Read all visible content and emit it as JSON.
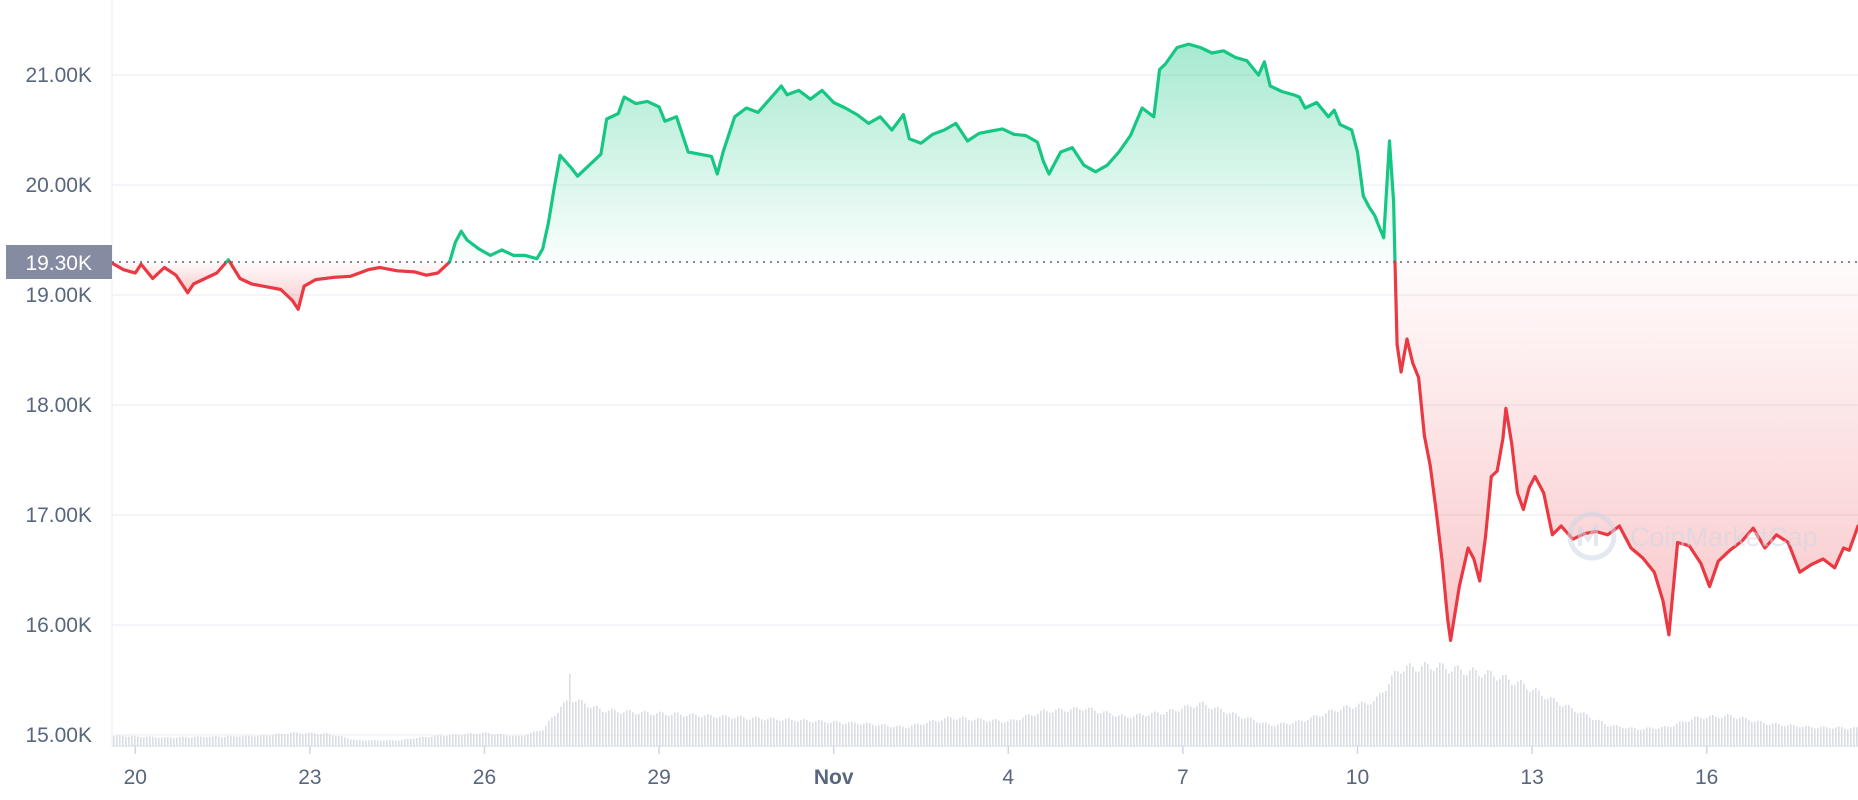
{
  "chart_data": {
    "type": "area",
    "title": "",
    "xlabel": "",
    "ylabel": "",
    "watermark": "CoinMarketCap",
    "reference": {
      "value": 19300,
      "label": "19.30K"
    },
    "ylim": [
      14900,
      21500
    ],
    "xlim": [
      19.6,
      49.6
    ],
    "y_ticks": [
      {
        "value": 21000,
        "label": "21.00K"
      },
      {
        "value": 20000,
        "label": "20.00K"
      },
      {
        "value": 19000,
        "label": "19.00K"
      },
      {
        "value": 18000,
        "label": "18.00K"
      },
      {
        "value": 17000,
        "label": "17.00K"
      },
      {
        "value": 16000,
        "label": "16.00K"
      },
      {
        "value": 15000,
        "label": "15.00K"
      }
    ],
    "x_ticks": [
      {
        "value": 20,
        "label": "20"
      },
      {
        "value": 23,
        "label": "23"
      },
      {
        "value": 26,
        "label": "26"
      },
      {
        "value": 29,
        "label": "29"
      },
      {
        "value": 32,
        "label": "Nov",
        "bold": true
      },
      {
        "value": 35,
        "label": "4"
      },
      {
        "value": 38,
        "label": "7"
      },
      {
        "value": 41,
        "label": "10"
      },
      {
        "value": 44,
        "label": "13"
      },
      {
        "value": 47,
        "label": "16"
      }
    ],
    "x_unit": "day (Oct 20 = 20, Nov 1 = 32)",
    "colors": {
      "up": "#16c784",
      "down": "#ea3943",
      "volume": "#d9dde4",
      "grid": "#eff2f5",
      "ref_box": "#858ca2",
      "axis_text": "#58667e"
    },
    "price": [
      [
        19.6,
        19290
      ],
      [
        19.8,
        19230
      ],
      [
        20.0,
        19200
      ],
      [
        20.1,
        19280
      ],
      [
        20.3,
        19150
      ],
      [
        20.5,
        19250
      ],
      [
        20.7,
        19180
      ],
      [
        20.9,
        19020
      ],
      [
        21.0,
        19100
      ],
      [
        21.2,
        19150
      ],
      [
        21.4,
        19200
      ],
      [
        21.6,
        19320
      ],
      [
        21.8,
        19150
      ],
      [
        22.0,
        19100
      ],
      [
        22.2,
        19080
      ],
      [
        22.5,
        19050
      ],
      [
        22.7,
        18950
      ],
      [
        22.8,
        18870
      ],
      [
        22.9,
        19080
      ],
      [
        23.1,
        19140
      ],
      [
        23.4,
        19160
      ],
      [
        23.7,
        19170
      ],
      [
        24.0,
        19230
      ],
      [
        24.2,
        19250
      ],
      [
        24.5,
        19220
      ],
      [
        24.8,
        19210
      ],
      [
        25.0,
        19180
      ],
      [
        25.2,
        19200
      ],
      [
        25.4,
        19300
      ],
      [
        25.5,
        19480
      ],
      [
        25.6,
        19580
      ],
      [
        25.7,
        19500
      ],
      [
        25.9,
        19420
      ],
      [
        26.1,
        19360
      ],
      [
        26.3,
        19410
      ],
      [
        26.5,
        19360
      ],
      [
        26.7,
        19360
      ],
      [
        26.9,
        19330
      ],
      [
        27.0,
        19420
      ],
      [
        27.1,
        19660
      ],
      [
        27.2,
        19980
      ],
      [
        27.3,
        20270
      ],
      [
        27.5,
        20150
      ],
      [
        27.6,
        20080
      ],
      [
        27.8,
        20180
      ],
      [
        28.0,
        20280
      ],
      [
        28.1,
        20600
      ],
      [
        28.3,
        20650
      ],
      [
        28.4,
        20800
      ],
      [
        28.6,
        20740
      ],
      [
        28.8,
        20760
      ],
      [
        29.0,
        20710
      ],
      [
        29.1,
        20580
      ],
      [
        29.3,
        20620
      ],
      [
        29.5,
        20300
      ],
      [
        29.7,
        20280
      ],
      [
        29.9,
        20260
      ],
      [
        30.0,
        20100
      ],
      [
        30.1,
        20300
      ],
      [
        30.3,
        20620
      ],
      [
        30.5,
        20700
      ],
      [
        30.7,
        20660
      ],
      [
        30.9,
        20780
      ],
      [
        31.1,
        20900
      ],
      [
        31.2,
        20820
      ],
      [
        31.4,
        20860
      ],
      [
        31.6,
        20780
      ],
      [
        31.8,
        20860
      ],
      [
        32.0,
        20750
      ],
      [
        32.2,
        20700
      ],
      [
        32.4,
        20640
      ],
      [
        32.6,
        20560
      ],
      [
        32.8,
        20620
      ],
      [
        33.0,
        20500
      ],
      [
        33.2,
        20640
      ],
      [
        33.3,
        20420
      ],
      [
        33.5,
        20380
      ],
      [
        33.7,
        20460
      ],
      [
        33.9,
        20500
      ],
      [
        34.1,
        20560
      ],
      [
        34.3,
        20400
      ],
      [
        34.5,
        20470
      ],
      [
        34.7,
        20490
      ],
      [
        34.9,
        20510
      ],
      [
        35.1,
        20460
      ],
      [
        35.3,
        20450
      ],
      [
        35.5,
        20390
      ],
      [
        35.6,
        20220
      ],
      [
        35.7,
        20100
      ],
      [
        35.9,
        20300
      ],
      [
        36.1,
        20340
      ],
      [
        36.3,
        20180
      ],
      [
        36.5,
        20120
      ],
      [
        36.7,
        20180
      ],
      [
        36.9,
        20300
      ],
      [
        37.1,
        20450
      ],
      [
        37.3,
        20700
      ],
      [
        37.5,
        20620
      ],
      [
        37.6,
        21050
      ],
      [
        37.7,
        21100
      ],
      [
        37.9,
        21250
      ],
      [
        38.1,
        21280
      ],
      [
        38.3,
        21250
      ],
      [
        38.5,
        21200
      ],
      [
        38.7,
        21220
      ],
      [
        38.9,
        21160
      ],
      [
        39.1,
        21130
      ],
      [
        39.3,
        21000
      ],
      [
        39.4,
        21120
      ],
      [
        39.5,
        20900
      ],
      [
        39.7,
        20850
      ],
      [
        39.9,
        20820
      ],
      [
        40.0,
        20800
      ],
      [
        40.1,
        20700
      ],
      [
        40.3,
        20750
      ],
      [
        40.5,
        20620
      ],
      [
        40.6,
        20680
      ],
      [
        40.7,
        20550
      ],
      [
        40.9,
        20500
      ],
      [
        41.0,
        20300
      ],
      [
        41.1,
        19900
      ],
      [
        41.2,
        19800
      ],
      [
        41.3,
        19720
      ],
      [
        41.35,
        19650
      ],
      [
        41.45,
        19520
      ],
      [
        41.55,
        20400
      ],
      [
        41.62,
        19850
      ],
      [
        41.68,
        18550
      ],
      [
        41.75,
        18300
      ],
      [
        41.85,
        18600
      ],
      [
        41.95,
        18380
      ],
      [
        42.05,
        18250
      ],
      [
        42.15,
        17720
      ],
      [
        42.25,
        17450
      ],
      [
        42.35,
        17050
      ],
      [
        42.45,
        16600
      ],
      [
        42.55,
        16050
      ],
      [
        42.6,
        15860
      ],
      [
        42.75,
        16350
      ],
      [
        42.9,
        16700
      ],
      [
        43.0,
        16600
      ],
      [
        43.1,
        16400
      ],
      [
        43.2,
        16800
      ],
      [
        43.3,
        17350
      ],
      [
        43.4,
        17400
      ],
      [
        43.5,
        17700
      ],
      [
        43.55,
        17970
      ],
      [
        43.65,
        17650
      ],
      [
        43.75,
        17200
      ],
      [
        43.85,
        17050
      ],
      [
        43.95,
        17250
      ],
      [
        44.05,
        17350
      ],
      [
        44.2,
        17200
      ],
      [
        44.35,
        16820
      ],
      [
        44.5,
        16900
      ],
      [
        44.7,
        16780
      ],
      [
        44.9,
        16830
      ],
      [
        45.1,
        16850
      ],
      [
        45.3,
        16820
      ],
      [
        45.5,
        16900
      ],
      [
        45.7,
        16700
      ],
      [
        45.9,
        16610
      ],
      [
        46.1,
        16480
      ],
      [
        46.25,
        16220
      ],
      [
        46.35,
        15910
      ],
      [
        46.5,
        16750
      ],
      [
        46.7,
        16720
      ],
      [
        46.9,
        16560
      ],
      [
        47.05,
        16350
      ],
      [
        47.2,
        16580
      ],
      [
        47.4,
        16680
      ],
      [
        47.6,
        16760
      ],
      [
        47.8,
        16880
      ],
      [
        48.0,
        16700
      ],
      [
        48.2,
        16820
      ],
      [
        48.4,
        16750
      ],
      [
        48.6,
        16480
      ],
      [
        48.8,
        16550
      ],
      [
        49.0,
        16600
      ],
      [
        49.2,
        16520
      ],
      [
        49.35,
        16700
      ],
      [
        49.45,
        16680
      ],
      [
        49.6,
        16900
      ]
    ],
    "volume_profile": [
      [
        19.6,
        0.11
      ],
      [
        20.5,
        0.09
      ],
      [
        21.5,
        0.1
      ],
      [
        22.2,
        0.11
      ],
      [
        22.7,
        0.14
      ],
      [
        23.3,
        0.13
      ],
      [
        23.8,
        0.06
      ],
      [
        24.5,
        0.06
      ],
      [
        25.0,
        0.1
      ],
      [
        26.0,
        0.14
      ],
      [
        26.6,
        0.1
      ],
      [
        27.0,
        0.18
      ],
      [
        27.3,
        0.42
      ],
      [
        27.5,
        0.5
      ],
      [
        28.0,
        0.38
      ],
      [
        28.5,
        0.36
      ],
      [
        29.5,
        0.33
      ],
      [
        30.5,
        0.3
      ],
      [
        31.5,
        0.27
      ],
      [
        32.5,
        0.24
      ],
      [
        33.2,
        0.2
      ],
      [
        34.0,
        0.3
      ],
      [
        35.0,
        0.26
      ],
      [
        35.6,
        0.37
      ],
      [
        36.3,
        0.4
      ],
      [
        37.0,
        0.31
      ],
      [
        37.7,
        0.36
      ],
      [
        38.3,
        0.45
      ],
      [
        38.9,
        0.33
      ],
      [
        39.5,
        0.22
      ],
      [
        40.0,
        0.26
      ],
      [
        40.6,
        0.38
      ],
      [
        41.3,
        0.48
      ],
      [
        41.7,
        0.82
      ],
      [
        42.3,
        0.85
      ],
      [
        42.8,
        0.8
      ],
      [
        43.3,
        0.76
      ],
      [
        43.8,
        0.66
      ],
      [
        44.3,
        0.5
      ],
      [
        44.8,
        0.36
      ],
      [
        45.3,
        0.22
      ],
      [
        45.8,
        0.18
      ],
      [
        46.3,
        0.2
      ],
      [
        46.8,
        0.3
      ],
      [
        47.4,
        0.32
      ],
      [
        48.0,
        0.24
      ],
      [
        48.8,
        0.2
      ],
      [
        49.6,
        0.19
      ]
    ],
    "volume_spike": [
      27.45,
      0.72
    ]
  }
}
